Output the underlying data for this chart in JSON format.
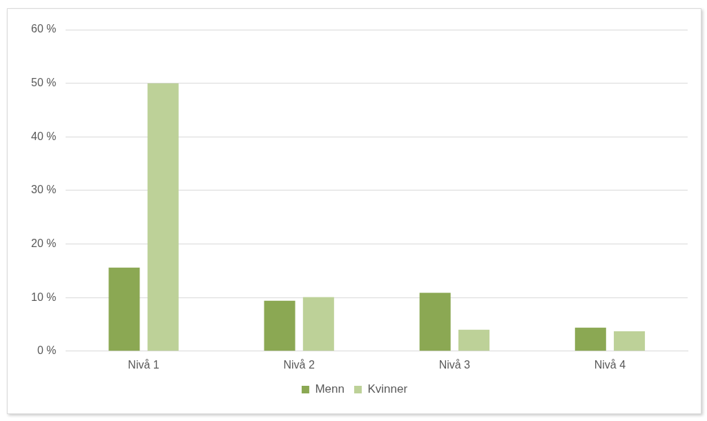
{
  "chart_data": {
    "type": "bar",
    "categories": [
      "Nivå 1",
      "Nivå 2",
      "Nivå 3",
      "Nivå 4"
    ],
    "series": [
      {
        "name": "Menn",
        "color": "#8ba853",
        "values": [
          15.6,
          9.4,
          10.9,
          4.4
        ]
      },
      {
        "name": "Kvinner",
        "color": "#bdd198",
        "values": [
          50,
          10.1,
          4.0,
          3.7
        ]
      }
    ],
    "ylim": [
      0,
      60
    ],
    "yticks": [
      {
        "value": 0,
        "label": "0 %"
      },
      {
        "value": 10,
        "label": "10 %"
      },
      {
        "value": 20,
        "label": "20 %"
      },
      {
        "value": 30,
        "label": "30 %"
      },
      {
        "value": 40,
        "label": "40 %"
      },
      {
        "value": 50,
        "label": "50 %"
      },
      {
        "value": 60,
        "label": "60 %"
      }
    ],
    "grid": "y",
    "legend": "bottom"
  }
}
